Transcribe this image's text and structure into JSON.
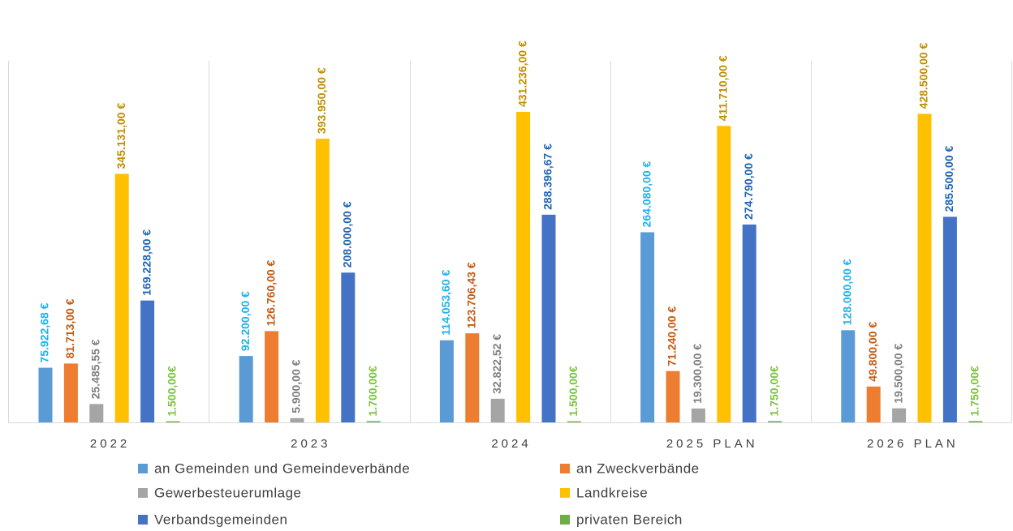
{
  "chart_data": {
    "type": "bar",
    "categories": [
      "2022",
      "2023",
      "2024",
      "2025 PLAN",
      "2026 PLAN"
    ],
    "series": [
      {
        "name": "an Gemeinden und Gemeindeverbände",
        "color": "#5b9bd5",
        "label_color": "#1fb2ea",
        "values": [
          75922.68,
          92200,
          114053.6,
          264080,
          128000
        ],
        "value_labels": [
          "75.922,68 €",
          "92.200,00 €",
          "114.053,60 €",
          "264.080,00 €",
          "128.000,00 €"
        ]
      },
      {
        "name": "an Zweckverbände",
        "color": "#ed7d31",
        "label_color": "#c55a11",
        "values": [
          81713,
          126760,
          123706.43,
          71240,
          49800
        ],
        "value_labels": [
          "81.713,00 €",
          "126.760,00 €",
          "123.706,43 €",
          "71.240,00 €",
          "49.800,00 €"
        ]
      },
      {
        "name": "Gewerbesteuerumlage",
        "color": "#a5a5a5",
        "label_color": "#7f7f7f",
        "values": [
          25485.55,
          5900,
          32822.52,
          19300,
          19500
        ],
        "value_labels": [
          "25.485,55 €",
          "5.900,00 €",
          "32.822,52 €",
          "19.300,00 €",
          "19.500,00 €"
        ]
      },
      {
        "name": "Landkreise",
        "color": "#ffc000",
        "label_color": "#bf9000",
        "values": [
          345131,
          393950,
          431236,
          411710,
          428500
        ],
        "value_labels": [
          "345.131,00 €",
          "393.950,00 €",
          "431.236,00 €",
          "411.710,00 €",
          "428.500,00 €"
        ]
      },
      {
        "name": "Verbandsgemeinden",
        "color": "#4472c4",
        "label_color": "#1f64b4",
        "values": [
          169228,
          208000,
          288396.67,
          274790,
          285500
        ],
        "value_labels": [
          "169.228,00 €",
          "208.000,00 €",
          "288.396,67 €",
          "274.790,00 €",
          "285.500,00 €"
        ]
      },
      {
        "name": "privaten Bereich",
        "color": "#70ad47",
        "label_color": "#7cc242",
        "values": [
          1500,
          1700,
          1500,
          1750,
          1750
        ],
        "value_labels": [
          "1.500,00€",
          "1.700,00€",
          "1.500,00€",
          "1.750,00€",
          "1.750,00€"
        ]
      }
    ]
  }
}
